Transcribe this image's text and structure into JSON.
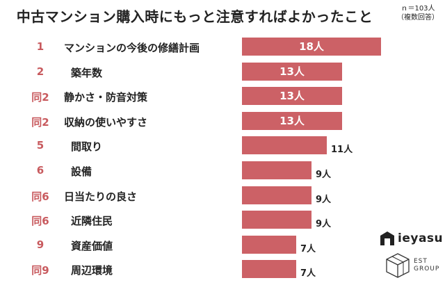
{
  "header": {
    "title": "中古マンション購入時にもっと注意すればよかったこと",
    "sample_size": "ｎ＝103人",
    "multiple_answers": "（複数回答）"
  },
  "colors": {
    "bar": "#cc6166",
    "rank_text": "#c85a5e",
    "text": "#222222",
    "background": "#ffffff"
  },
  "chart_data": {
    "type": "bar",
    "orientation": "horizontal",
    "title": "中古マンション購入時にもっと注意すればよかったこと",
    "unit": "人",
    "ranks": [
      "1",
      "2",
      "同2",
      "同2",
      "5",
      "6",
      "同6",
      "同6",
      "9",
      "同9"
    ],
    "categories": [
      "マンションの今後の修繕計画",
      "築年数",
      "静かさ・防音対策",
      "収納の使いやすさ",
      "間取り",
      "設備",
      "日当たりの良さ",
      "近隣住民",
      "資産価値",
      "周辺環境"
    ],
    "values": [
      18,
      13,
      13,
      13,
      11,
      9,
      9,
      9,
      7,
      7
    ],
    "value_labels": [
      "18人",
      "13人",
      "13人",
      "13人",
      "11人",
      "9人",
      "9人",
      "9人",
      "7人",
      "7人"
    ],
    "xlim": [
      0,
      18
    ],
    "grid": false,
    "legend": "none"
  },
  "logos": {
    "ieyasu": {
      "name": "ieyasu",
      "icon": "house-icon"
    },
    "est_group": {
      "line1": "EST",
      "line2": "GROUP",
      "icon": "cube-icon"
    }
  }
}
